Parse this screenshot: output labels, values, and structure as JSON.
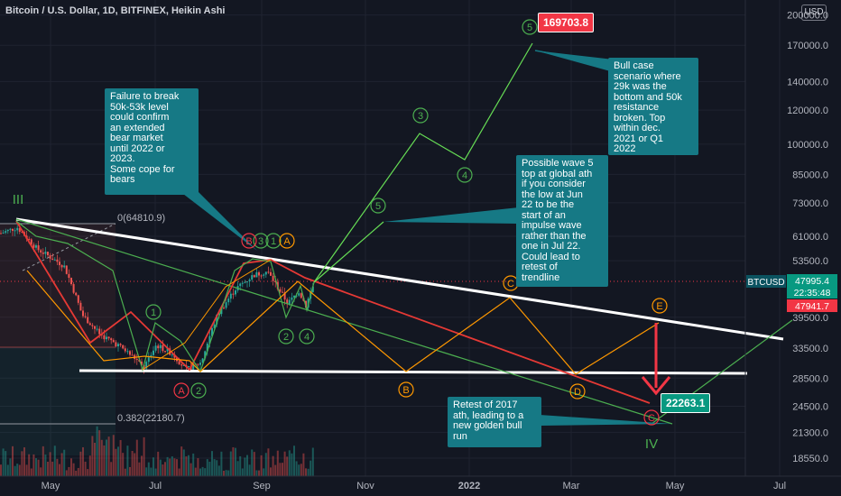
{
  "header": {
    "title": "Bitcoin / U.S. Dollar, 1D, BITFINEX, Heikin Ashi",
    "currency_button": "USD"
  },
  "chart_data": {
    "type": "candlestick",
    "symbol": "BTCUSD",
    "y_scale": "log",
    "x_axis_labels": [
      "May",
      "Jul",
      "Sep",
      "Nov",
      "2022",
      "Mar",
      "May",
      "Jul"
    ],
    "y_axis_ticks": [
      "200000.0",
      "170000.0",
      "140000.0",
      "120000.0",
      "100000.0",
      "85000.0",
      "73000.0",
      "61000.0",
      "53500.0",
      "39500.0",
      "33500.0",
      "28500.0",
      "24500.0",
      "21300.0",
      "18550.0"
    ],
    "price_tags": [
      {
        "label": "BTCUSD",
        "color": "#0b5360"
      },
      {
        "value": "47995.4",
        "color": "#089981"
      },
      {
        "value": "22:35:48",
        "color": "#089981"
      },
      {
        "value": "47941.7",
        "color": "#f23645"
      }
    ],
    "fib_levels": [
      {
        "label": "0(64810.9)"
      },
      {
        "label": "0.382(22180.7)"
      }
    ],
    "price_labels": [
      {
        "value": "169703.8",
        "color": "#f23645"
      },
      {
        "value": "22263.1",
        "color": "#089981"
      }
    ],
    "wave_labels": {
      "green": [
        "1",
        "2",
        "3",
        "4",
        "5",
        "3",
        "4",
        "5",
        "2",
        "4",
        "1",
        "3"
      ],
      "red": [
        "A",
        "B",
        "C"
      ],
      "orange": [
        "A",
        "B",
        "C",
        "D",
        "E"
      ],
      "roman": [
        "III",
        "IV"
      ]
    },
    "annotations": [
      "Failure to break\n50k-53k level\ncould confirm\nan extended\nbear market\nuntil 2022 or\n2023.\nSome cope for\nbears",
      "Bull case\nscenario where\n29k was the\nbottom and 50k\nresistance\nbroken. Top\nwithin dec.\n2021 or Q1\n2022",
      "Possible wave 5\ntop at global ath\nif you consider\nthe low at Jun\n22 to be the\nstart of an\nimpulse wave\nrather than the\none in Jul 22.\nCould lead to\nretest of\ntrendline",
      "Retest of 2017\nath, leading to a\nnew golden bull\nrun"
    ],
    "colors": {
      "up": "#26a69a",
      "down": "#ef5350",
      "impulse": "#4caf50",
      "bull_path": "#66dd55",
      "correction": "#ff9800",
      "bear_path": "#e53935",
      "trendline": "#ffffff",
      "callout": "#167985",
      "background": "#131722"
    }
  }
}
